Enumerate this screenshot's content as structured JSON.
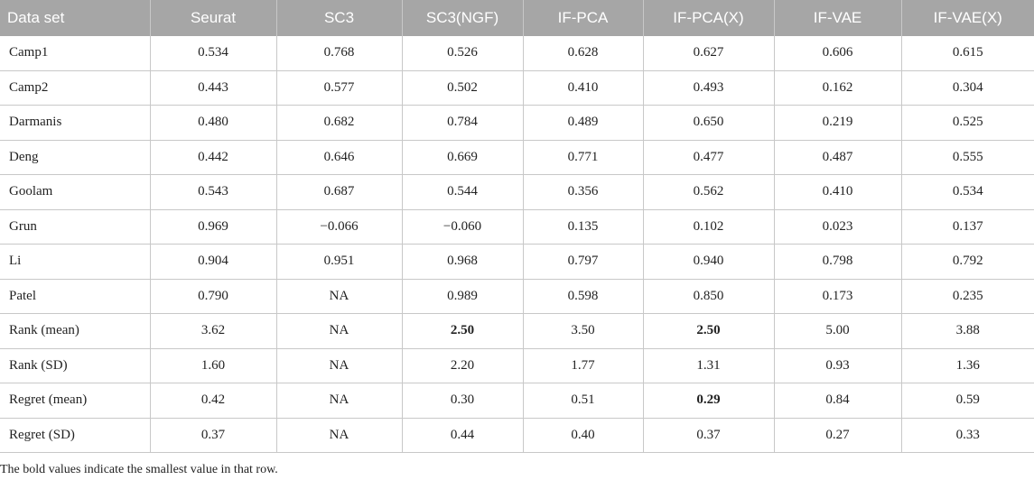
{
  "table": {
    "headers": [
      "Data set",
      "Seurat",
      "SC3",
      "SC3(NGF)",
      "IF-PCA",
      "IF-PCA(X)",
      "IF-VAE",
      "IF-VAE(X)"
    ],
    "rows": [
      {
        "cells": [
          "Camp1",
          "0.534",
          "0.768",
          "0.526",
          "0.628",
          "0.627",
          "0.606",
          "0.615"
        ],
        "bold": []
      },
      {
        "cells": [
          "Camp2",
          "0.443",
          "0.577",
          "0.502",
          "0.410",
          "0.493",
          "0.162",
          "0.304"
        ],
        "bold": []
      },
      {
        "cells": [
          "Darmanis",
          "0.480",
          "0.682",
          "0.784",
          "0.489",
          "0.650",
          "0.219",
          "0.525"
        ],
        "bold": []
      },
      {
        "cells": [
          "Deng",
          "0.442",
          "0.646",
          "0.669",
          "0.771",
          "0.477",
          "0.487",
          "0.555"
        ],
        "bold": []
      },
      {
        "cells": [
          "Goolam",
          "0.543",
          "0.687",
          "0.544",
          "0.356",
          "0.562",
          "0.410",
          "0.534"
        ],
        "bold": []
      },
      {
        "cells": [
          "Grun",
          "0.969",
          "−0.066",
          "−0.060",
          "0.135",
          "0.102",
          "0.023",
          "0.137"
        ],
        "bold": []
      },
      {
        "cells": [
          "Li",
          "0.904",
          "0.951",
          "0.968",
          "0.797",
          "0.940",
          "0.798",
          "0.792"
        ],
        "bold": []
      },
      {
        "cells": [
          "Patel",
          "0.790",
          "NA",
          "0.989",
          "0.598",
          "0.850",
          "0.173",
          "0.235"
        ],
        "bold": []
      },
      {
        "cells": [
          "Rank (mean)",
          "3.62",
          "NA",
          "2.50",
          "3.50",
          "2.50",
          "5.00",
          "3.88"
        ],
        "bold": [
          3,
          5
        ]
      },
      {
        "cells": [
          "Rank (SD)",
          "1.60",
          "NA",
          "2.20",
          "1.77",
          "1.31",
          "0.93",
          "1.36"
        ],
        "bold": []
      },
      {
        "cells": [
          "Regret (mean)",
          "0.42",
          "NA",
          "0.30",
          "0.51",
          "0.29",
          "0.84",
          "0.59"
        ],
        "bold": [
          5
        ]
      },
      {
        "cells": [
          "Regret (SD)",
          "0.37",
          "NA",
          "0.44",
          "0.40",
          "0.37",
          "0.27",
          "0.33"
        ],
        "bold": []
      }
    ]
  },
  "footnote": "The bold values indicate the smallest value in that row."
}
